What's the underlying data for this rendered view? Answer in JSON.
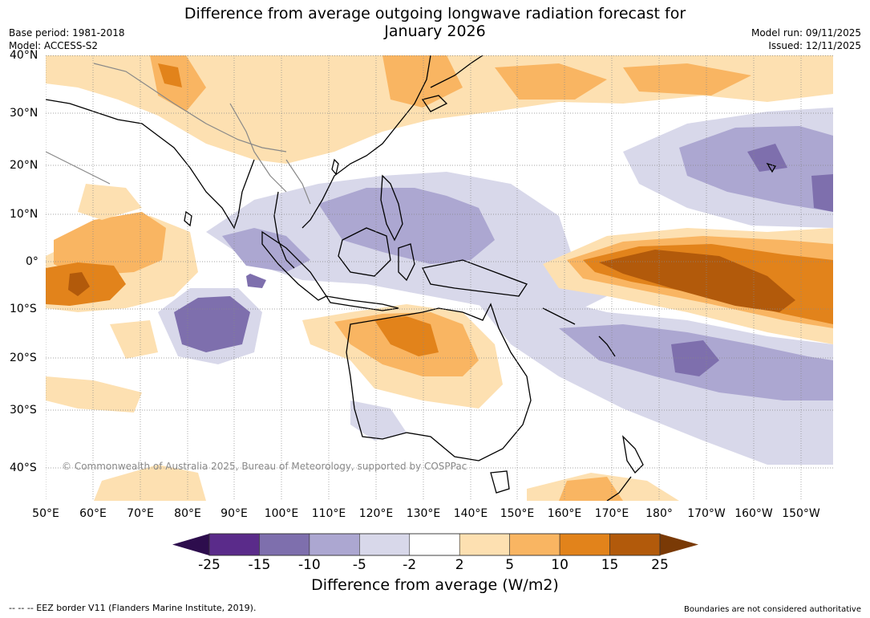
{
  "title": {
    "line1": "Difference from average outgoing longwave radiation forecast for",
    "line2": "January 2026"
  },
  "meta_left": {
    "base_period": "Base period: 1981-2018",
    "model": "Model: ACCESS-S2"
  },
  "meta_right": {
    "model_run": "Model run: 09/11/2025",
    "issued": "Issued: 12/11/2025"
  },
  "axes": {
    "lat_labels": [
      "40°N",
      "30°N",
      "20°N",
      "10°N",
      "0°",
      "10°S",
      "20°S",
      "30°S",
      "40°S"
    ],
    "lon_labels": [
      "50°E",
      "60°E",
      "70°E",
      "80°E",
      "90°E",
      "100°E",
      "110°E",
      "120°E",
      "130°E",
      "140°E",
      "150°E",
      "160°E",
      "170°E",
      "180°",
      "170°W",
      "160°W",
      "150°W"
    ]
  },
  "copyright": "© Commonwealth of Australia 2025, Bureau of Meteorology, supported by COSPPac",
  "colorbar": {
    "title": "Difference from average (W/m2)",
    "ticks": [
      "-25",
      "-15",
      "-10",
      "-5",
      "-2",
      "2",
      "5",
      "10",
      "15",
      "25"
    ],
    "colors": [
      "#2d0d4d",
      "#5a2b8a",
      "#7e6fad",
      "#aca7d1",
      "#d8d8ea",
      "#ffffff",
      "#fde0b1",
      "#f9b562",
      "#e2831b",
      "#b25a0b",
      "#7a3a06"
    ]
  },
  "footer": {
    "left": "--  --  -- EEZ border V11 (Flanders Marine Institute, 2019).",
    "right": "Boundaries are not considered authoritative"
  }
}
